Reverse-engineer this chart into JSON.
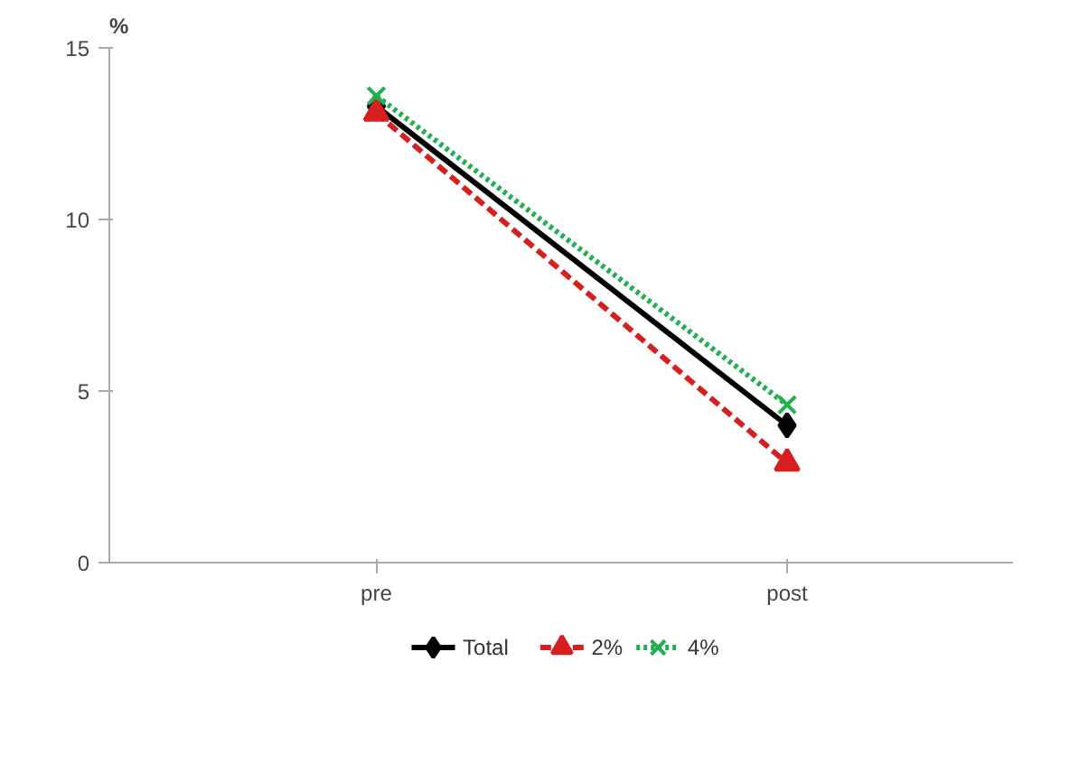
{
  "chart_data": {
    "type": "line",
    "ylabel": "%",
    "categories": [
      "pre",
      "post"
    ],
    "series": [
      {
        "name": "Total",
        "color": "#000000",
        "values": [
          13.3,
          4.0
        ],
        "marker": "diamond",
        "line_style": "solid"
      },
      {
        "name": "2%",
        "color": "#d62020",
        "values": [
          13.1,
          2.9
        ],
        "marker": "triangle",
        "line_style": "dashed"
      },
      {
        "name": "4%",
        "color": "#20b050",
        "values": [
          13.6,
          4.6
        ],
        "marker": "cross",
        "line_style": "dotted"
      }
    ],
    "ylim": [
      0,
      15
    ],
    "yticks": [
      0,
      5,
      10,
      15
    ],
    "grid": false,
    "legend": "bottom"
  }
}
